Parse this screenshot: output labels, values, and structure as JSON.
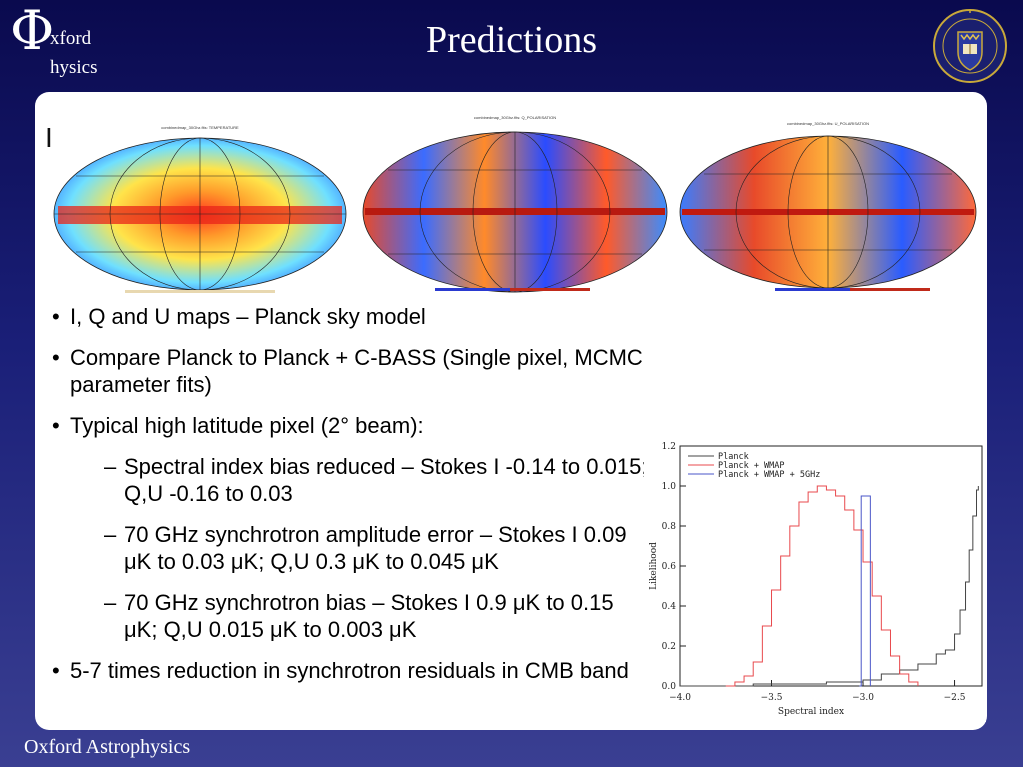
{
  "header": {
    "logo_phi": "Φ",
    "logo_line1": "xford",
    "logo_line2": "hysics",
    "title": "Predictions",
    "crest_icon": "oxford-university-crest-icon"
  },
  "panel": {
    "corner_mark": "I"
  },
  "maps": [
    {
      "name": "temperature-map",
      "title": "combinedmap_30Ghz.fits: TEMPERATURE"
    },
    {
      "name": "q-polarisation-map",
      "title": "combinedmap_30Ghz.fits: Q_POLARISATION"
    },
    {
      "name": "u-polarisation-map",
      "title": "combinedmap_30Ghz.fits: U_POLARISATION"
    }
  ],
  "bullets": {
    "b1": "I, Q and U maps – Planck sky model",
    "b2": "Compare Planck to Planck + C-BASS (Single pixel, MCMC parameter fits)",
    "b3": "Typical high latitude pixel (2° beam):",
    "s1": "Spectral index bias reduced – Stokes I -0.14 to 0.015; Q,U -0.16 to 0.03",
    "s2": "70 GHz synchrotron amplitude error – Stokes I 0.09 μK to 0.03 μK; Q,U 0.3 μK to 0.045 μK",
    "s3": "70 GHz synchrotron bias – Stokes I 0.9 μK to 0.15 μK; Q,U 0.015 μK to 0.003 μK",
    "b4": "5-7 times reduction in synchrotron residuals in CMB band",
    "bullet_char": "•",
    "dash_char": "–"
  },
  "chart_data": {
    "type": "line",
    "xlabel": "Spectral index",
    "ylabel": "Likelihood",
    "xlim": [
      -4.0,
      -2.35
    ],
    "ylim": [
      0.0,
      1.2
    ],
    "xticks": [
      -4.0,
      -3.5,
      -3.0,
      -2.5
    ],
    "xtick_labels": [
      "−4.0",
      "−3.5",
      "−3.0",
      "−2.5"
    ],
    "yticks": [
      0.0,
      0.2,
      0.4,
      0.6,
      0.8,
      1.0,
      1.2
    ],
    "ytick_labels": [
      "0.0",
      "0.2",
      "0.4",
      "0.6",
      "0.8",
      "1.0",
      "1.2"
    ],
    "legend_position": "top-left",
    "series": [
      {
        "name": "Planck",
        "color": "#444444",
        "x": [
          -4.0,
          -3.8,
          -3.6,
          -3.4,
          -3.2,
          -3.0,
          -2.9,
          -2.8,
          -2.7,
          -2.6,
          -2.55,
          -2.5,
          -2.47,
          -2.44,
          -2.42,
          -2.4,
          -2.38,
          -2.37
        ],
        "y": [
          0.0,
          0.0,
          0.01,
          0.01,
          0.02,
          0.03,
          0.06,
          0.08,
          0.11,
          0.16,
          0.18,
          0.26,
          0.38,
          0.52,
          0.68,
          0.85,
          0.98,
          1.0
        ]
      },
      {
        "name": "Planck + WMAP",
        "color": "#e8494d",
        "x": [
          -3.75,
          -3.7,
          -3.65,
          -3.6,
          -3.55,
          -3.5,
          -3.45,
          -3.4,
          -3.35,
          -3.3,
          -3.25,
          -3.2,
          -3.15,
          -3.1,
          -3.05,
          -3.0,
          -2.95,
          -2.9,
          -2.85,
          -2.8,
          -2.75,
          -2.7
        ],
        "y": [
          0.0,
          0.02,
          0.05,
          0.12,
          0.3,
          0.48,
          0.65,
          0.8,
          0.92,
          0.97,
          1.0,
          0.98,
          0.95,
          0.88,
          0.78,
          0.62,
          0.45,
          0.28,
          0.15,
          0.06,
          0.02,
          0.0
        ]
      },
      {
        "name": "Planck + WMAP + 5GHz",
        "color": "#4a56c8",
        "x": [
          -3.02,
          -3.01,
          -3.0,
          -2.99,
          -2.98,
          -2.97,
          -2.96
        ],
        "y": [
          0.0,
          0.95,
          0.95,
          0.95,
          0.95,
          0.95,
          0.0
        ]
      }
    ]
  },
  "footer": {
    "text": "Oxford Astrophysics"
  }
}
